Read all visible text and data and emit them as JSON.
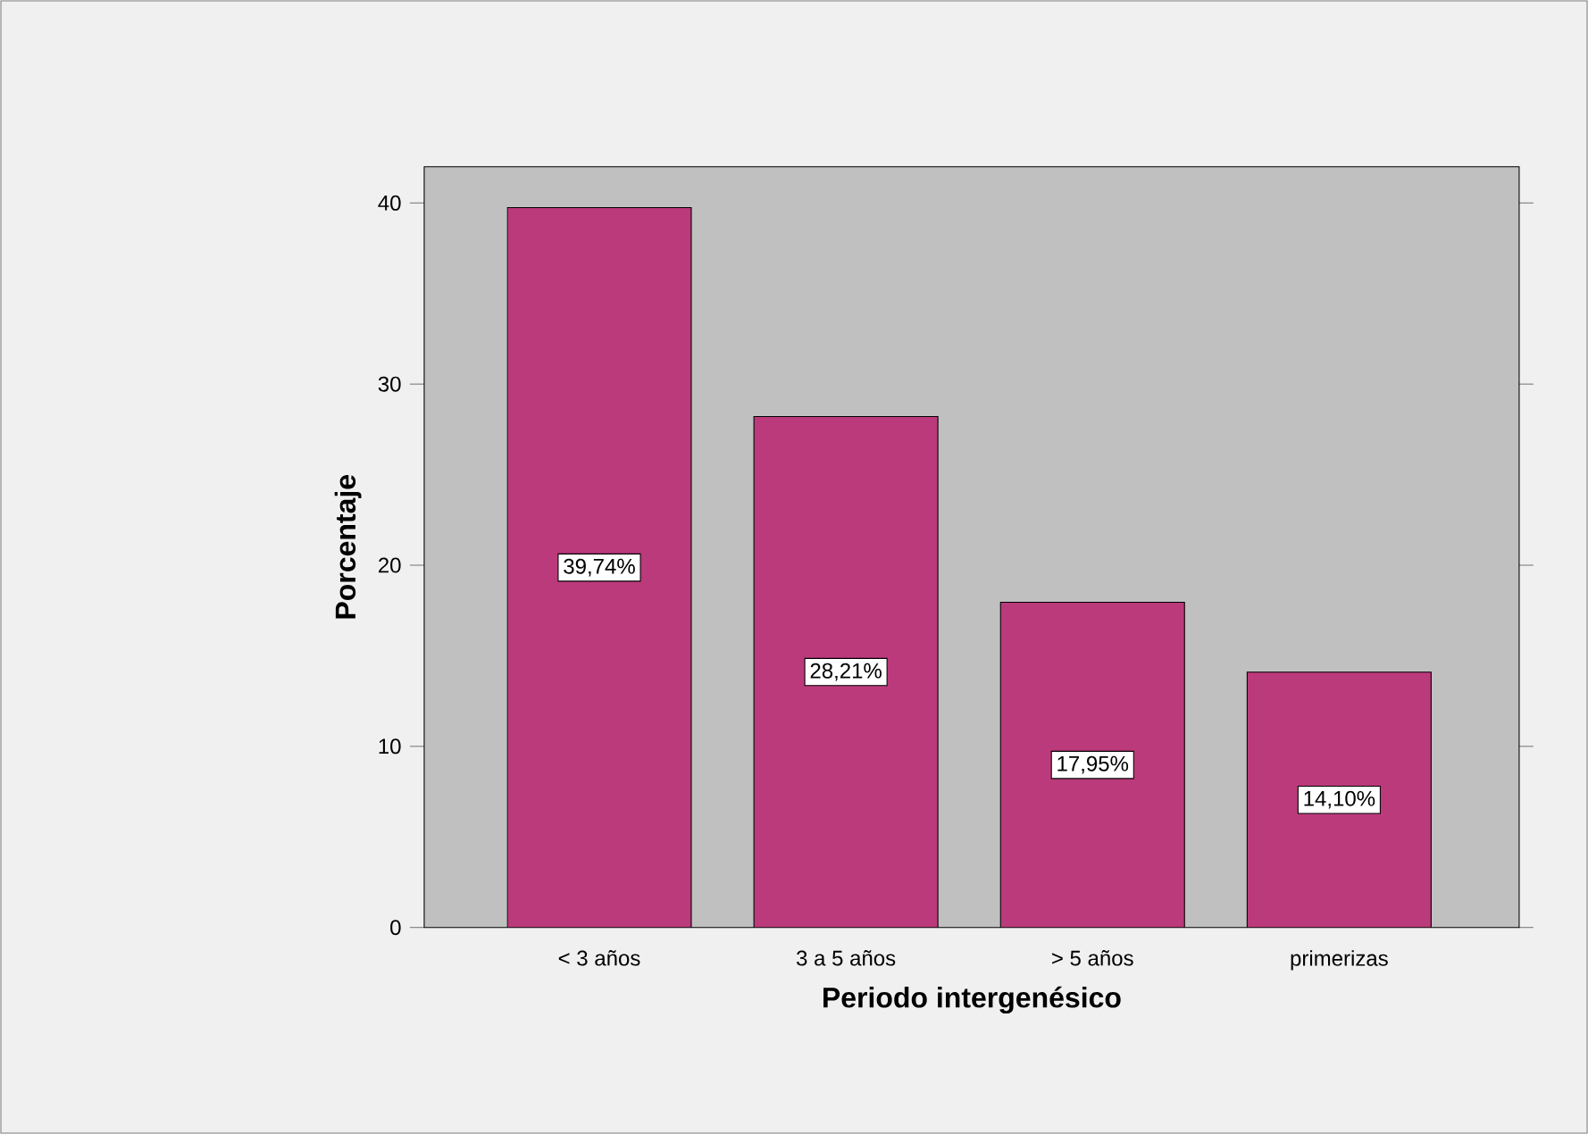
{
  "chart_data": {
    "type": "bar",
    "xlabel": "Periodo intergenésico",
    "ylabel": "Porcentaje",
    "categories": [
      "< 3 años",
      "3 a 5 años",
      "> 5 años",
      "primerizas"
    ],
    "values": [
      39.74,
      28.21,
      17.95,
      14.1
    ],
    "value_labels": [
      "39,74%",
      "28,21%",
      "17,95%",
      "14,10%"
    ],
    "color": "#bb3a7b",
    "ylim": [
      0,
      42
    ],
    "yticks": [
      0,
      10,
      20,
      30,
      40
    ]
  }
}
